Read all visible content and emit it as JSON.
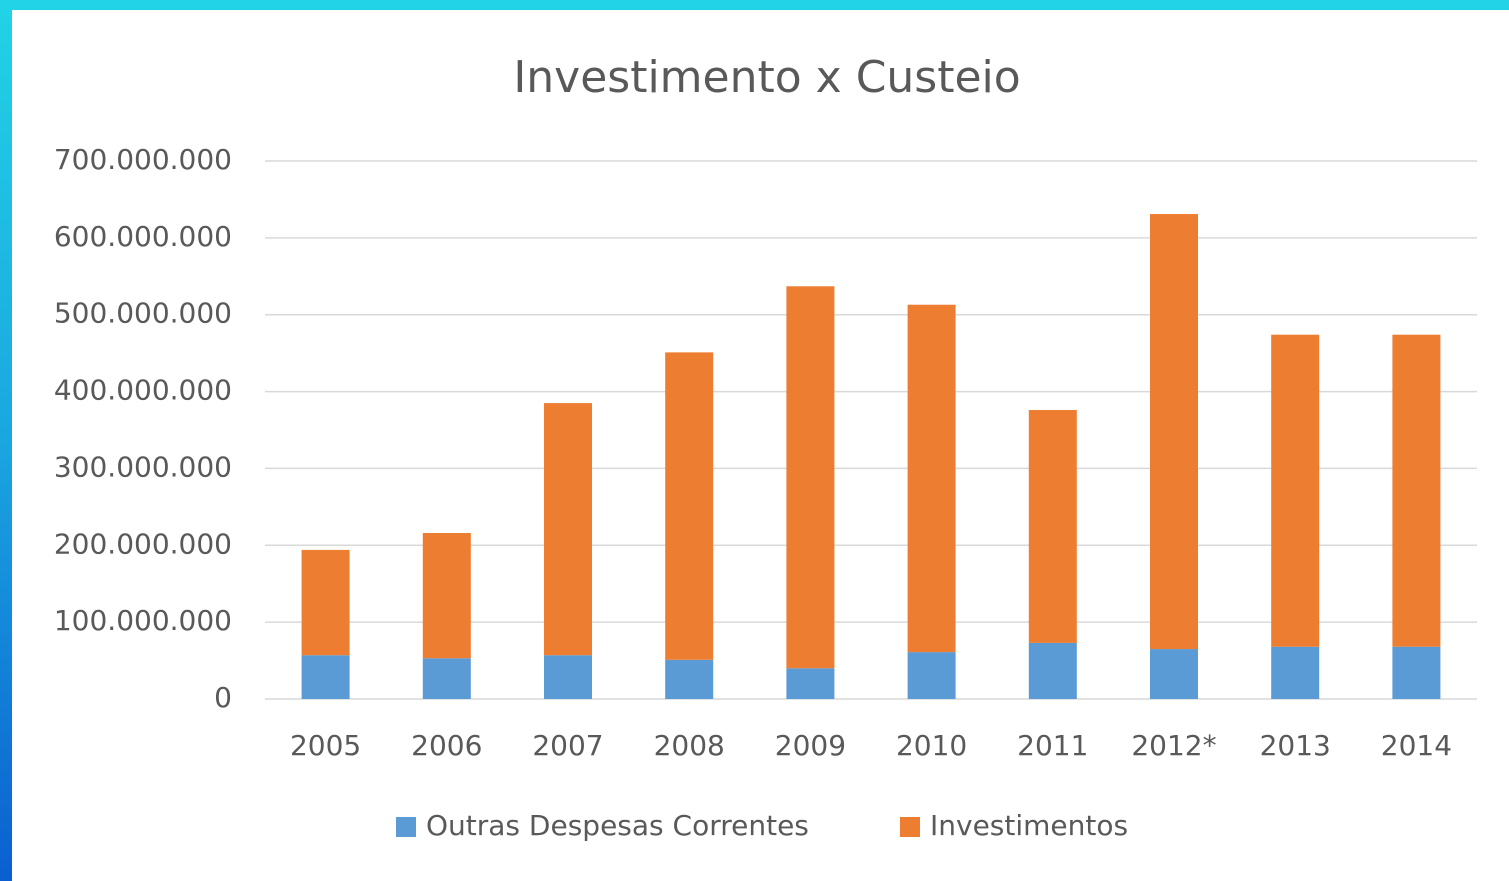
{
  "chart_data": {
    "type": "stacked_bar",
    "title": "Investimento x Custeio",
    "categories": [
      "2005",
      "2006",
      "2007",
      "2008",
      "2009",
      "2010",
      "2011",
      "2012*",
      "2013",
      "2014"
    ],
    "series": [
      {
        "name": "Outras Despesas Correntes",
        "color": "#5b9bd5",
        "values": [
          57000000,
          53000000,
          57000000,
          51000000,
          40000000,
          61000000,
          73000000,
          65000000,
          68000000,
          68000000
        ]
      },
      {
        "name": "Investimentos",
        "color": "#ed7d31",
        "values": [
          137000000,
          163000000,
          328000000,
          400000000,
          497000000,
          452000000,
          303000000,
          566000000,
          406000000,
          406000000
        ]
      }
    ],
    "ylim": [
      0,
      700000000
    ],
    "yticks": [
      0,
      {
        "value": 100000000,
        "label": "100.000.000"
      },
      {
        "value": 200000000,
        "label": "200.000.000"
      },
      {
        "value": 300000000,
        "label": "300.000.000"
      },
      {
        "value": 400000000,
        "label": "400.000.000"
      },
      {
        "value": 500000000,
        "label": "500.000.000"
      },
      {
        "value": 600000000,
        "label": "600.000.000"
      },
      {
        "value": 700000000,
        "label": "700.000.000"
      }
    ],
    "grid": true,
    "legend": "bottom"
  }
}
